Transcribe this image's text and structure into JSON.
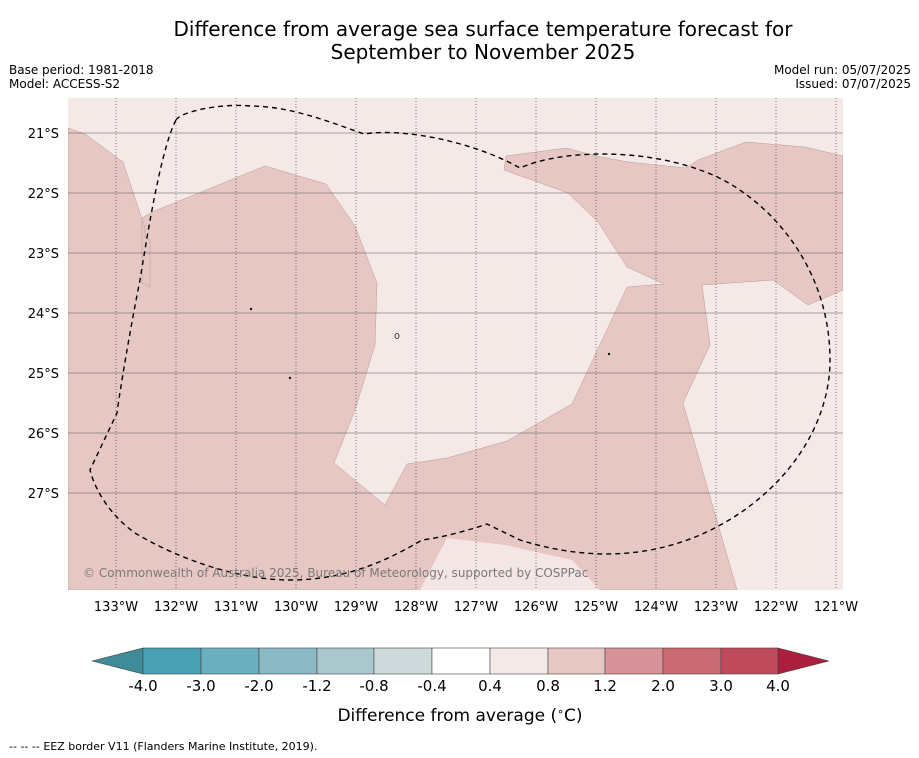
{
  "header": {
    "title_line1": "Difference from average sea surface temperature forecast for",
    "title_line2": "September to November 2025",
    "base_period": "Base period: 1981-2018",
    "model": "Model: ACCESS-S2",
    "model_run": "Model run: 05/07/2025",
    "issued": "Issued: 07/07/2025"
  },
  "map": {
    "lat_labels": [
      "21°S",
      "22°S",
      "23°S",
      "24°S",
      "25°S",
      "26°S",
      "27°S"
    ],
    "lon_labels": [
      "133°W",
      "132°W",
      "131°W",
      "130°W",
      "129°W",
      "128°W",
      "127°W",
      "126°W",
      "125°W",
      "124°W",
      "123°W",
      "122°W",
      "121°W"
    ],
    "copyright": "© Commonwealth of Australia 2025, Bureau of Meteorology, supported by COSPPac",
    "colors": {
      "band_0_4_to_0_8": "#f5e9e8",
      "band_0_8_to_1_2": "#e7c7c3",
      "eez_border": "#000000"
    }
  },
  "colorbar": {
    "tick_labels": [
      "-4.0",
      "-3.0",
      "-2.0",
      "-1.2",
      "-0.8",
      "-0.4",
      "0.4",
      "0.8",
      "1.2",
      "2.0",
      "3.0",
      "4.0"
    ],
    "colors": [
      "#3f8b97",
      "#48a2b4",
      "#6ab0bf",
      "#8bb9c5",
      "#a9c7cd",
      "#cfdadd",
      "#ffffff",
      "#f5e9e8",
      "#e7c7c3",
      "#d8929a",
      "#cc6a74",
      "#bf4a5b",
      "#ab1e3d"
    ],
    "label": "Difference from average (",
    "unit_degree": "∘",
    "unit_letter": "C)"
  },
  "footer": {
    "legend_symbol": "--  --  --",
    "legend_text": "EEZ border V11 (Flanders Marine Institute, 2019)."
  }
}
